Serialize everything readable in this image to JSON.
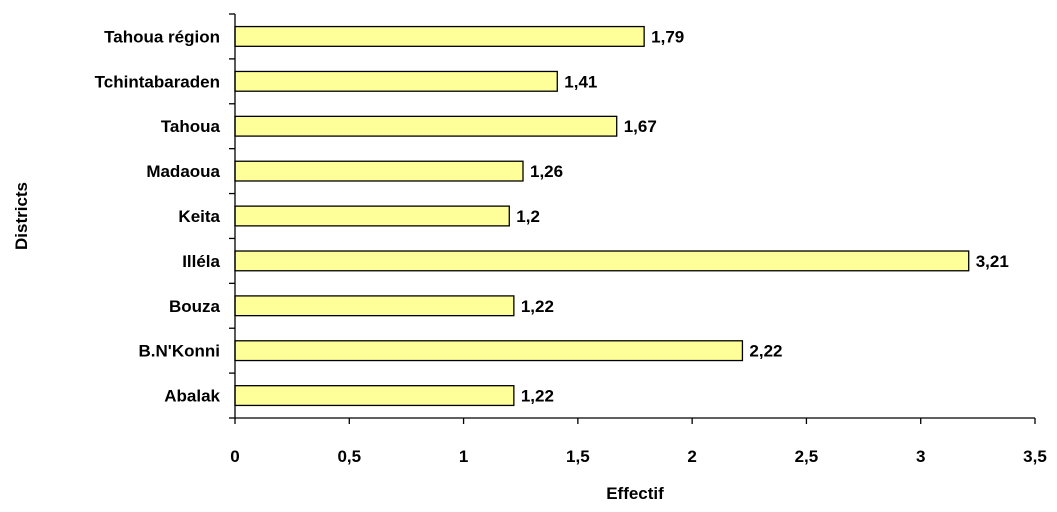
{
  "chart_data": {
    "type": "bar",
    "orientation": "horizontal",
    "categories": [
      "Abalak",
      "B.N'Konni",
      "Bouza",
      "Illéla",
      "Keita",
      "Madaoua",
      "Tahoua",
      "Tchintabaraden",
      "Tahoua région"
    ],
    "values": [
      1.22,
      2.22,
      1.22,
      3.21,
      1.2,
      1.26,
      1.67,
      1.41,
      1.79
    ],
    "value_labels": [
      "1,22",
      "2,22",
      "1,22",
      "3,21",
      "1,2",
      "1,26",
      "1,67",
      "1,41",
      "1,79"
    ],
    "title": "",
    "xlabel": "Effectif",
    "ylabel": "Districts",
    "xlim": [
      0,
      3.5
    ],
    "xticks": [
      0,
      0.5,
      1,
      1.5,
      2,
      2.5,
      3,
      3.5
    ],
    "xtick_labels": [
      "0",
      "0,5",
      "1",
      "1,5",
      "2",
      "2,5",
      "3",
      "3,5"
    ],
    "grid": false,
    "legend": "none",
    "colors": {
      "bar_fill": "#FFFF99",
      "bar_stroke": "#000000",
      "axis": "#000000",
      "background": "#FFFFFF"
    }
  }
}
